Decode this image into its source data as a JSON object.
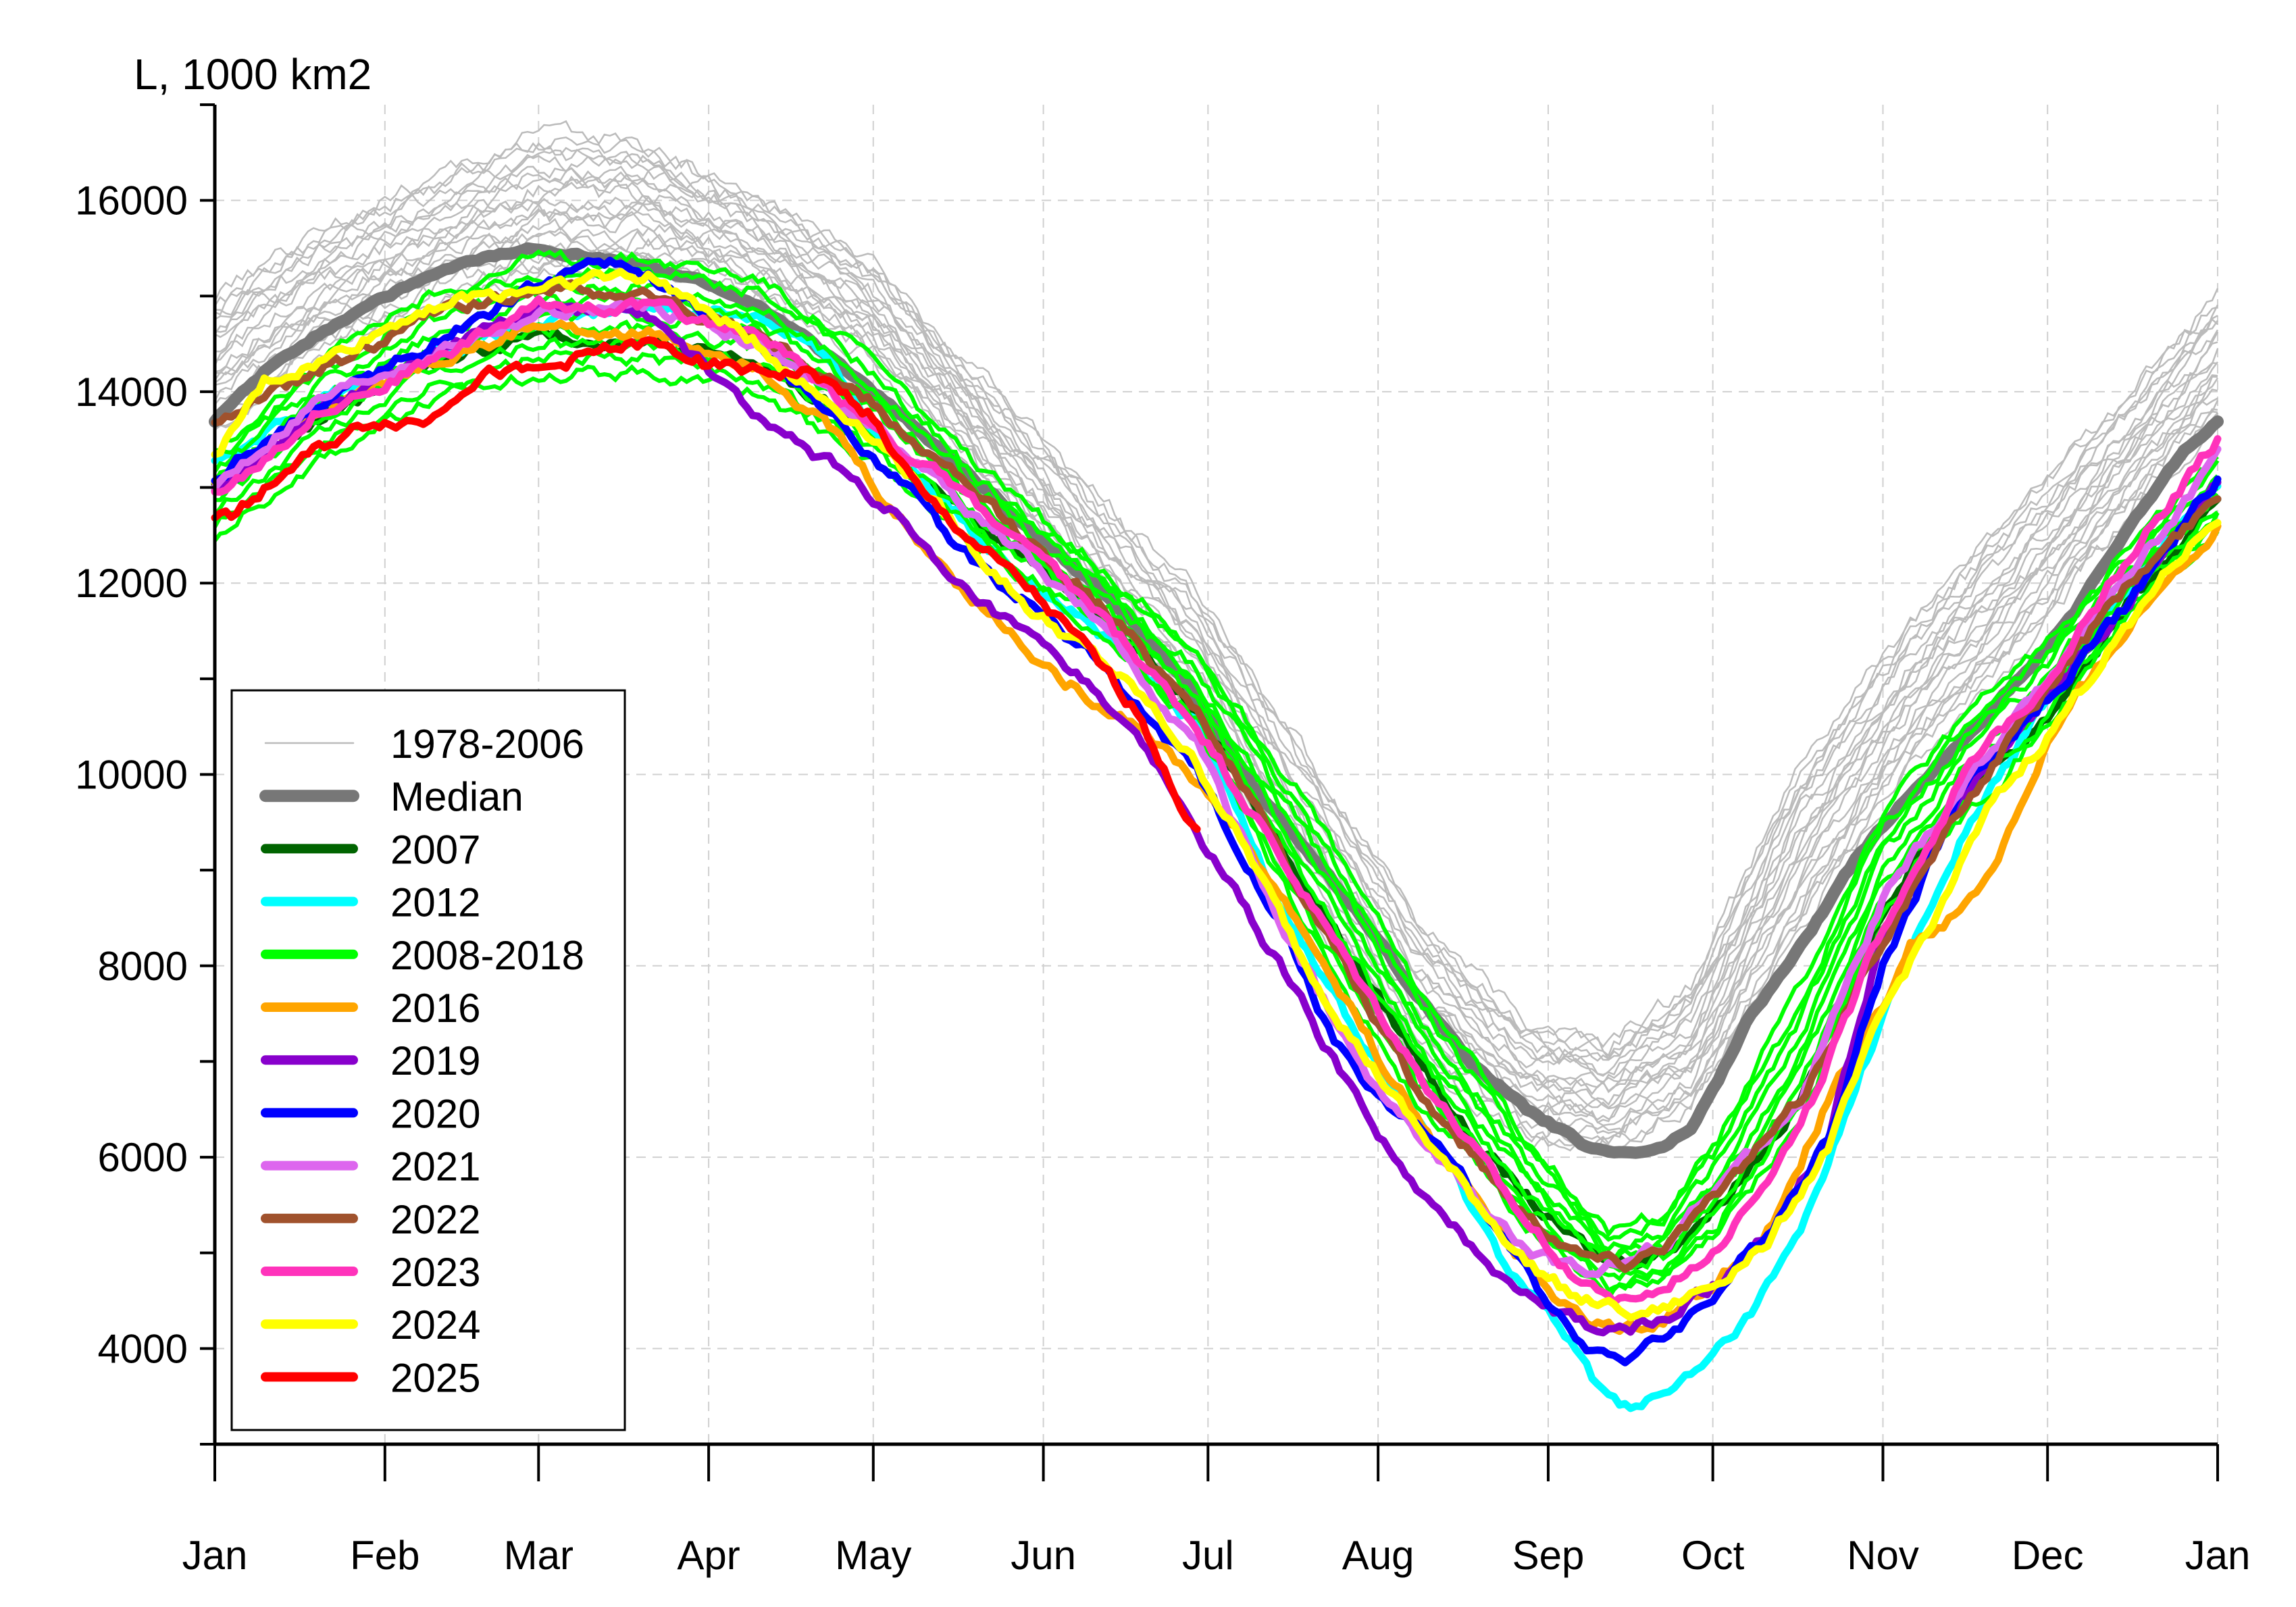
{
  "chart_data": {
    "type": "line",
    "ylabel": "L, 1000 km2",
    "xlabel": "",
    "title": "",
    "ylim": [
      3000,
      17000
    ],
    "yticks": [
      4000,
      6000,
      8000,
      10000,
      12000,
      14000,
      16000
    ],
    "ytick_labels": [
      "4000",
      "6000",
      "8000",
      "10000",
      "12000",
      "14000",
      "16000"
    ],
    "xlim": [
      1,
      366
    ],
    "xticks": [
      1,
      32,
      60,
      91,
      121,
      152,
      182,
      213,
      244,
      274,
      305,
      335,
      366
    ],
    "xtick_labels": [
      "Jan",
      "Feb",
      "Mar",
      "Apr",
      "May",
      "Jun",
      "Jul",
      "Aug",
      "Sep",
      "Oct",
      "Nov",
      "Dec",
      "Jan"
    ],
    "grid": true,
    "legend_position": "lower-left",
    "series": [
      {
        "name": "1978-2006",
        "color": "#bbbbbb",
        "style": "thin-band",
        "x": [
          1,
          20,
          40,
          60,
          80,
          100,
          120,
          140,
          160,
          180,
          200,
          220,
          240,
          255,
          270,
          290,
          310,
          330,
          350,
          366
        ],
        "lower": [
          13600,
          14400,
          14900,
          15200,
          15300,
          15000,
          14400,
          13200,
          11800,
          10500,
          8600,
          7000,
          6200,
          6100,
          6500,
          8400,
          10100,
          11300,
          12700,
          13700
        ],
        "upper": [
          15000,
          15700,
          16200,
          16700,
          16600,
          16000,
          15400,
          14200,
          13000,
          11900,
          10200,
          8500,
          7400,
          7200,
          7800,
          10100,
          11600,
          12800,
          14000,
          15000
        ]
      },
      {
        "name": "Median",
        "color": "#777777",
        "x": [
          1,
          10,
          20,
          30,
          40,
          50,
          60,
          70,
          80,
          90,
          100,
          110,
          120,
          130,
          140,
          150,
          160,
          170,
          180,
          190,
          200,
          210,
          220,
          230,
          240,
          250,
          255,
          260,
          265,
          270,
          275,
          280,
          290,
          300,
          310,
          320,
          330,
          340,
          350,
          360,
          366
        ],
        "y": [
          13700,
          14200,
          14600,
          14950,
          15200,
          15400,
          15500,
          15400,
          15300,
          15150,
          14900,
          14500,
          14050,
          13550,
          13050,
          12550,
          12050,
          11500,
          10800,
          9900,
          9200,
          8500,
          7700,
          7000,
          6500,
          6150,
          6050,
          6050,
          6100,
          6300,
          6800,
          7400,
          8200,
          9100,
          9800,
          10400,
          11000,
          11700,
          12600,
          13400,
          13700
        ]
      },
      {
        "name": "2007",
        "color": "#006400",
        "x": [
          1,
          20,
          40,
          60,
          80,
          100,
          120,
          140,
          160,
          180,
          200,
          215,
          230,
          245,
          255,
          265,
          275,
          290,
          305,
          320,
          335,
          350,
          366
        ],
        "y": [
          13000,
          13700,
          14300,
          14600,
          14500,
          14300,
          13600,
          12600,
          11800,
          10700,
          8800,
          7500,
          6200,
          5300,
          4900,
          5000,
          5500,
          6600,
          8600,
          9800,
          10600,
          11800,
          12800
        ]
      },
      {
        "name": "2012",
        "color": "#00ffff",
        "x": [
          1,
          20,
          40,
          60,
          80,
          100,
          110,
          120,
          140,
          160,
          180,
          195,
          210,
          225,
          235,
          245,
          252,
          258,
          265,
          272,
          280,
          290,
          305,
          320,
          335,
          350,
          366
        ],
        "y": [
          13300,
          13900,
          14400,
          14700,
          14900,
          14800,
          14500,
          13700,
          12500,
          11600,
          10500,
          8700,
          7200,
          6000,
          5000,
          4300,
          3700,
          3400,
          3500,
          3800,
          4300,
          5200,
          7500,
          9400,
          10800,
          12000,
          13000
        ]
      },
      {
        "name": "2008-2018",
        "color": "#00ff00",
        "style": "band",
        "x": [
          1,
          20,
          40,
          60,
          80,
          100,
          120,
          140,
          160,
          180,
          200,
          220,
          240,
          255,
          265,
          275,
          290,
          305,
          320,
          335,
          350,
          366
        ],
        "lower": [
          12500,
          13300,
          13900,
          14200,
          14200,
          14000,
          13300,
          12400,
          11600,
          10500,
          8400,
          6600,
          5300,
          4600,
          4700,
          5200,
          6400,
          8400,
          9600,
          10500,
          11700,
          12500
        ],
        "upper": [
          13400,
          14300,
          15000,
          15400,
          15400,
          15200,
          14400,
          13200,
          12300,
          11300,
          9700,
          7800,
          6200,
          5200,
          5400,
          6200,
          7800,
          9600,
          10600,
          11400,
          12400,
          13300
        ]
      },
      {
        "name": "2016",
        "color": "#ffa500",
        "x": [
          1,
          20,
          40,
          60,
          80,
          100,
          115,
          125,
          140,
          155,
          170,
          185,
          200,
          220,
          240,
          250,
          258,
          265,
          275,
          285,
          295,
          305,
          310,
          320,
          325,
          335,
          345,
          355,
          366
        ],
        "y": [
          13000,
          13800,
          14300,
          14700,
          14600,
          14300,
          13500,
          12700,
          11800,
          11000,
          10500,
          9600,
          8300,
          6400,
          4900,
          4300,
          4200,
          4300,
          4700,
          5300,
          6600,
          7600,
          8200,
          8600,
          9000,
          10300,
          11200,
          11900,
          12600
        ]
      },
      {
        "name": "2019",
        "color": "#8800cc",
        "x": [
          1,
          20,
          40,
          60,
          80,
          95,
          105,
          115,
          125,
          135,
          150,
          165,
          180,
          195,
          205,
          220,
          235,
          245,
          252,
          258,
          265,
          275,
          285,
          295,
          305,
          320,
          335,
          350,
          366
        ],
        "y": [
          13000,
          13800,
          14400,
          14900,
          14800,
          14000,
          13500,
          13200,
          12700,
          12000,
          11400,
          10700,
          9400,
          8000,
          7000,
          5600,
          4800,
          4400,
          4200,
          4200,
          4300,
          4700,
          5300,
          6200,
          8300,
          9800,
          10800,
          11800,
          13100
        ]
      },
      {
        "name": "2020",
        "color": "#0000ff",
        "x": [
          1,
          20,
          40,
          60,
          70,
          80,
          100,
          120,
          140,
          160,
          180,
          195,
          205,
          215,
          225,
          235,
          245,
          252,
          258,
          265,
          275,
          285,
          295,
          305,
          320,
          335,
          350,
          366
        ],
        "y": [
          13100,
          13900,
          14500,
          15100,
          15400,
          15200,
          14500,
          13400,
          12200,
          11300,
          10000,
          8500,
          7200,
          6500,
          6100,
          5200,
          4400,
          4000,
          3900,
          4100,
          4600,
          5300,
          6200,
          8000,
          9900,
          10800,
          11800,
          13100
        ]
      },
      {
        "name": "2021",
        "color": "#dd66ee",
        "x": [
          1,
          20,
          40,
          60,
          80,
          100,
          120,
          140,
          160,
          180,
          195,
          210,
          225,
          240,
          250,
          258,
          265,
          275,
          290,
          305,
          320,
          335,
          350,
          366
        ],
        "y": [
          13000,
          13900,
          14400,
          14800,
          14900,
          14500,
          13700,
          12700,
          11700,
          10300,
          8500,
          6900,
          5900,
          5000,
          4800,
          4900,
          5100,
          5700,
          6600,
          8700,
          9900,
          11000,
          12100,
          13300
        ]
      },
      {
        "name": "2022",
        "color": "#a0522d",
        "x": [
          1,
          20,
          40,
          60,
          80,
          100,
          120,
          140,
          160,
          180,
          200,
          220,
          240,
          250,
          258,
          265,
          275,
          290,
          305,
          320,
          335,
          350,
          366
        ],
        "y": [
          13700,
          14200,
          14800,
          15100,
          15000,
          14600,
          13900,
          12900,
          11900,
          10700,
          8700,
          6700,
          5400,
          5000,
          4900,
          5100,
          5600,
          6600,
          8300,
          9700,
          10900,
          12000,
          12900
        ]
      },
      {
        "name": "2023",
        "color": "#ff33bb",
        "x": [
          1,
          20,
          40,
          60,
          80,
          100,
          120,
          140,
          160,
          180,
          200,
          220,
          240,
          250,
          258,
          265,
          275,
          290,
          305,
          320,
          335,
          350,
          366
        ],
        "y": [
          12900,
          13800,
          14300,
          14900,
          14900,
          14600,
          13700,
          12800,
          11800,
          10500,
          8700,
          6900,
          5300,
          4700,
          4500,
          4600,
          5100,
          6300,
          8400,
          10000,
          11000,
          12300,
          13500
        ]
      },
      {
        "name": "2024",
        "color": "#ffff00",
        "x": [
          1,
          10,
          20,
          30,
          40,
          50,
          60,
          70,
          80,
          90,
          100,
          110,
          120,
          130,
          140,
          150,
          160,
          170,
          180,
          190,
          200,
          210,
          220,
          230,
          240,
          250,
          258,
          265,
          275,
          285,
          295,
          305,
          315,
          325,
          335,
          345,
          355,
          366
        ],
        "y": [
          13300,
          14100,
          14300,
          14600,
          14900,
          15000,
          15100,
          15200,
          15200,
          14900,
          14500,
          14000,
          13600,
          13000,
          12300,
          11700,
          11300,
          10800,
          10100,
          9100,
          8000,
          7100,
          6300,
          5600,
          4900,
          4500,
          4400,
          4400,
          4700,
          5200,
          6100,
          7500,
          8600,
          9700,
          10400,
          11200,
          12000,
          12700
        ]
      },
      {
        "name": "2025",
        "color": "#ff0000",
        "x": [
          1,
          5,
          10,
          20,
          30,
          40,
          45,
          50,
          60,
          70,
          80,
          90,
          100,
          110,
          120,
          130,
          140,
          150,
          160,
          170,
          175,
          180
        ],
        "y": [
          12700,
          12700,
          13000,
          13400,
          13700,
          13700,
          14000,
          14200,
          14200,
          14400,
          14500,
          14300,
          14200,
          14200,
          13800,
          12900,
          12400,
          11900,
          11300,
          10600,
          9900,
          9400
        ]
      }
    ]
  }
}
